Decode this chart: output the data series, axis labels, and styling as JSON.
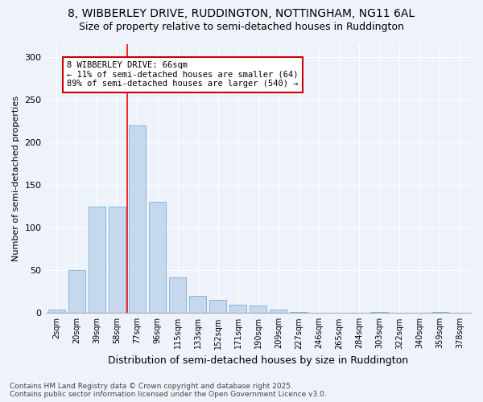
{
  "title_line1": "8, WIBBERLEY DRIVE, RUDDINGTON, NOTTINGHAM, NG11 6AL",
  "title_line2": "Size of property relative to semi-detached houses in Ruddington",
  "xlabel": "Distribution of semi-detached houses by size in Ruddington",
  "ylabel": "Number of semi-detached properties",
  "bar_color": "#c5d8ee",
  "bar_edge_color": "#7aafd4",
  "categories": [
    "2sqm",
    "20sqm",
    "39sqm",
    "58sqm",
    "77sqm",
    "96sqm",
    "115sqm",
    "133sqm",
    "152sqm",
    "171sqm",
    "190sqm",
    "209sqm",
    "227sqm",
    "246sqm",
    "265sqm",
    "284sqm",
    "303sqm",
    "322sqm",
    "340sqm",
    "359sqm",
    "378sqm"
  ],
  "values": [
    4,
    50,
    125,
    125,
    220,
    130,
    42,
    20,
    15,
    10,
    9,
    4,
    1,
    0,
    0,
    0,
    1,
    0,
    0,
    1,
    0
  ],
  "ylim": [
    0,
    315
  ],
  "yticks": [
    0,
    50,
    100,
    150,
    200,
    250,
    300
  ],
  "property_label": "8 WIBBERLEY DRIVE: 66sqm",
  "pct_smaller": 11,
  "pct_smaller_count": 64,
  "pct_larger": 89,
  "pct_larger_count": 540,
  "vline_x": 3.5,
  "footnote1": "Contains HM Land Registry data © Crown copyright and database right 2025.",
  "footnote2": "Contains public sector information licensed under the Open Government Licence v3.0.",
  "bg_color": "#eef2fa",
  "title_fontsize": 10,
  "subtitle_fontsize": 9,
  "annotation_box_color": "#ffffff",
  "annotation_box_edge": "#cc0000",
  "grid_color": "#ffffff",
  "footnote_fontsize": 6.5
}
